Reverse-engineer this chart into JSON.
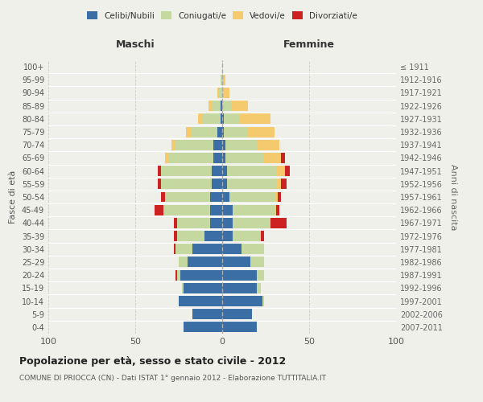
{
  "age_groups": [
    "0-4",
    "5-9",
    "10-14",
    "15-19",
    "20-24",
    "25-29",
    "30-34",
    "35-39",
    "40-44",
    "45-49",
    "50-54",
    "55-59",
    "60-64",
    "65-69",
    "70-74",
    "75-79",
    "80-84",
    "85-89",
    "90-94",
    "95-99",
    "100+"
  ],
  "birth_years": [
    "2007-2011",
    "2002-2006",
    "1997-2001",
    "1992-1996",
    "1987-1991",
    "1982-1986",
    "1977-1981",
    "1972-1976",
    "1967-1971",
    "1962-1966",
    "1957-1961",
    "1952-1956",
    "1947-1951",
    "1942-1946",
    "1937-1941",
    "1932-1936",
    "1927-1931",
    "1922-1926",
    "1917-1921",
    "1912-1916",
    "≤ 1911"
  ],
  "colors": {
    "celibi": "#3a6ea5",
    "coniugati": "#c5d8a0",
    "vedovi": "#f5c96e",
    "divorziati": "#cc2222"
  },
  "maschi": {
    "celibi": [
      22,
      17,
      25,
      22,
      24,
      20,
      17,
      10,
      7,
      7,
      7,
      6,
      6,
      5,
      5,
      3,
      1,
      1,
      0,
      0,
      0
    ],
    "coniugati": [
      0,
      0,
      0,
      1,
      2,
      5,
      10,
      16,
      19,
      27,
      26,
      29,
      29,
      26,
      22,
      15,
      10,
      5,
      2,
      1,
      0
    ],
    "vedovi": [
      0,
      0,
      0,
      0,
      0,
      0,
      0,
      0,
      0,
      0,
      0,
      0,
      0,
      2,
      2,
      3,
      3,
      2,
      1,
      0,
      0
    ],
    "divorziati": [
      0,
      0,
      0,
      0,
      1,
      0,
      1,
      2,
      2,
      5,
      2,
      2,
      2,
      0,
      0,
      0,
      0,
      0,
      0,
      0,
      0
    ]
  },
  "femmine": {
    "celibi": [
      20,
      17,
      23,
      20,
      20,
      16,
      11,
      6,
      6,
      6,
      4,
      3,
      3,
      2,
      2,
      1,
      1,
      0,
      0,
      0,
      0
    ],
    "coniugati": [
      0,
      0,
      1,
      2,
      4,
      8,
      13,
      16,
      22,
      24,
      26,
      28,
      28,
      22,
      18,
      14,
      9,
      5,
      1,
      1,
      0
    ],
    "vedovi": [
      0,
      0,
      0,
      0,
      0,
      0,
      0,
      0,
      0,
      1,
      2,
      3,
      5,
      10,
      13,
      15,
      18,
      10,
      3,
      1,
      0
    ],
    "divorziati": [
      0,
      0,
      0,
      0,
      0,
      0,
      0,
      2,
      9,
      2,
      2,
      3,
      3,
      2,
      0,
      0,
      0,
      0,
      0,
      0,
      0
    ]
  },
  "title": "Popolazione per età, sesso e stato civile - 2012",
  "subtitle": "COMUNE DI PRIOCCA (CN) - Dati ISTAT 1° gennaio 2012 - Elaborazione TUTTITALIA.IT",
  "ylabel_left": "Fasce di età",
  "ylabel_right": "Anni di nascita",
  "xlabel_left": "Maschi",
  "xlabel_right": "Femmine",
  "xlim": 100,
  "background_color": "#f0f0eb",
  "grid_color": "#cccccc"
}
